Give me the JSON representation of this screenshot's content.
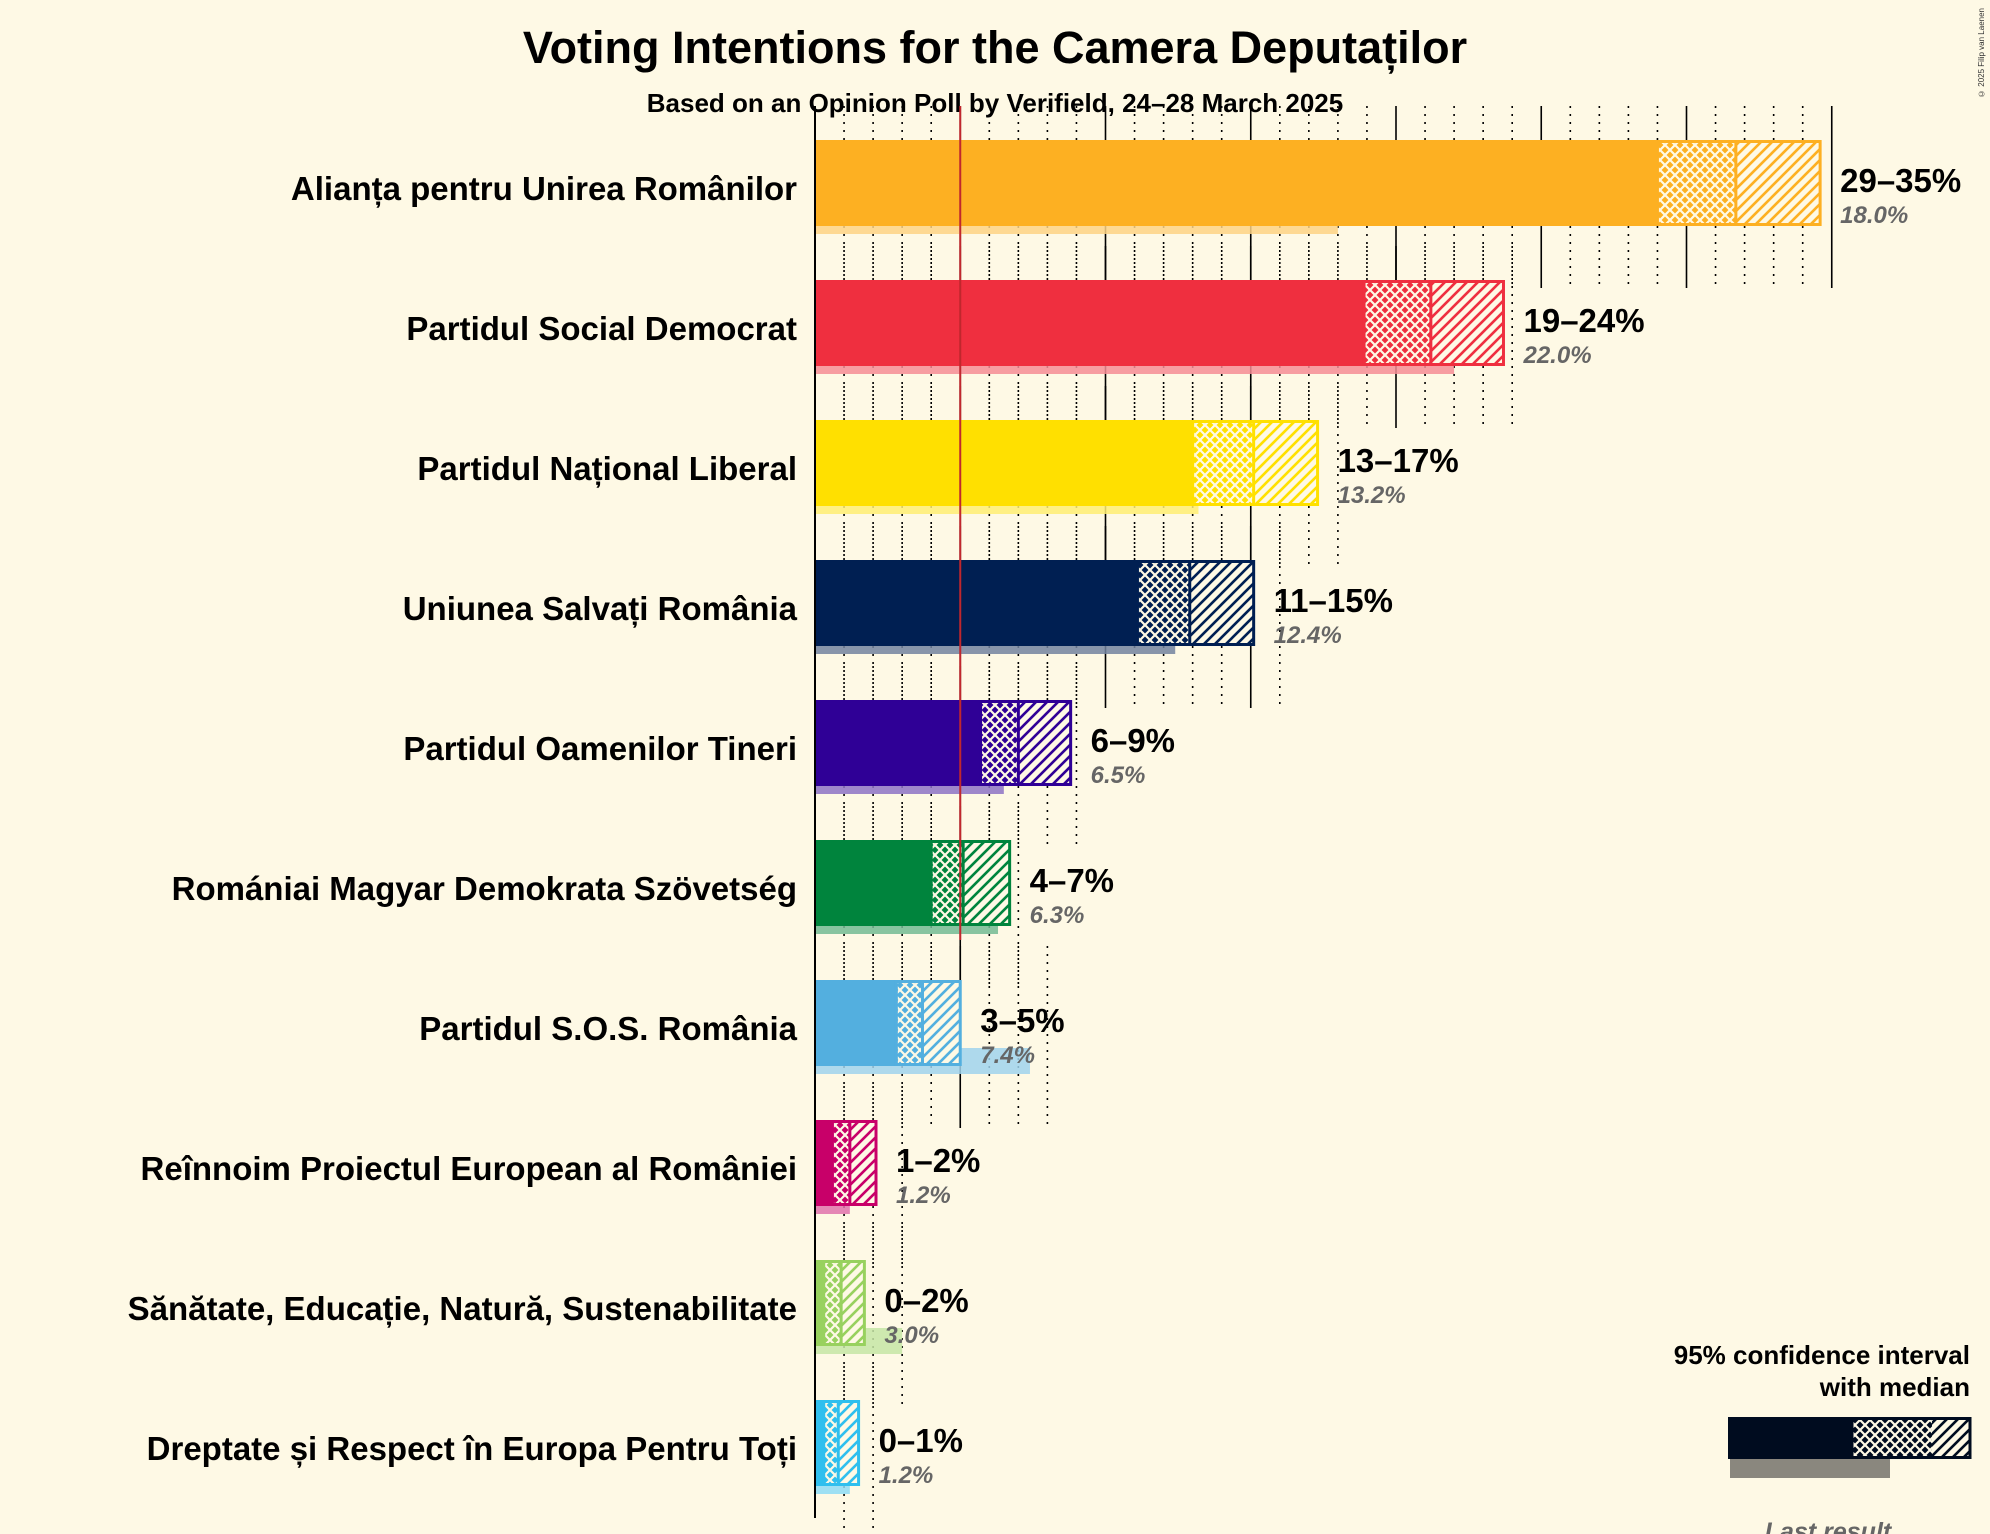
{
  "title": "Voting Intentions for the Camera Deputaților",
  "subtitle": "Based on an Opinion Poll by Verifield, 24–28 March 2025",
  "copyright": "© 2025 Filip van Laenen",
  "legend": {
    "line1": "95% confidence interval",
    "line2": "with median",
    "last_result": "Last result"
  },
  "chart_data": {
    "type": "bar",
    "orientation": "horizontal",
    "xlim": [
      0,
      36
    ],
    "threshold": 5,
    "categories": [
      "Alianța pentru Unirea Românilor",
      "Partidul Social Democrat",
      "Partidul Național Liberal",
      "Uniunea Salvați România",
      "Partidul Oamenilor Tineri",
      "Romániai Magyar Demokrata Szövetség",
      "Partidul S.O.S. România",
      "Reînnoim Proiectul European al României",
      "Sănătate, Educație, Natură, Sustenabilitate",
      "Dreptate și Respect în Europa Pentru Toți"
    ],
    "series": [
      {
        "name": "95% confidence interval",
        "values": [
          {
            "low": 29.0,
            "median": 31.7,
            "high": 34.6,
            "label": "29–35%"
          },
          {
            "low": 18.9,
            "median": 21.2,
            "high": 23.7,
            "label": "19–24%"
          },
          {
            "low": 13.0,
            "median": 15.1,
            "high": 17.3,
            "label": "13–17%"
          },
          {
            "low": 11.1,
            "median": 12.9,
            "high": 15.1,
            "label": "11–15%"
          },
          {
            "low": 5.7,
            "median": 7.0,
            "high": 8.8,
            "label": "6–9%"
          },
          {
            "low": 4.0,
            "median": 5.1,
            "high": 6.7,
            "label": "4–7%"
          },
          {
            "low": 2.8,
            "median": 3.7,
            "high": 5.0,
            "label": "3–5%"
          },
          {
            "low": 0.6,
            "median": 1.2,
            "high": 2.1,
            "label": "1–2%"
          },
          {
            "low": 0.3,
            "median": 0.9,
            "high": 1.7,
            "label": "0–2%"
          },
          {
            "low": 0.3,
            "median": 0.8,
            "high": 1.5,
            "label": "0–1%"
          }
        ]
      },
      {
        "name": "Last result",
        "values": [
          18.0,
          22.0,
          13.2,
          12.4,
          6.5,
          6.3,
          7.4,
          1.2,
          3.0,
          1.2
        ],
        "labels": [
          "18.0%",
          "22.0%",
          "13.2%",
          "12.4%",
          "6.5%",
          "6.3%",
          "7.4%",
          "1.2%",
          "3.0%",
          "1.2%"
        ]
      }
    ],
    "colors": [
      "#fdb022",
      "#ef2f3f",
      "#ffe000",
      "#001f52",
      "#2f0096",
      "#00843d",
      "#53afdf",
      "#c80069",
      "#98d15e",
      "#2fbfee"
    ]
  }
}
